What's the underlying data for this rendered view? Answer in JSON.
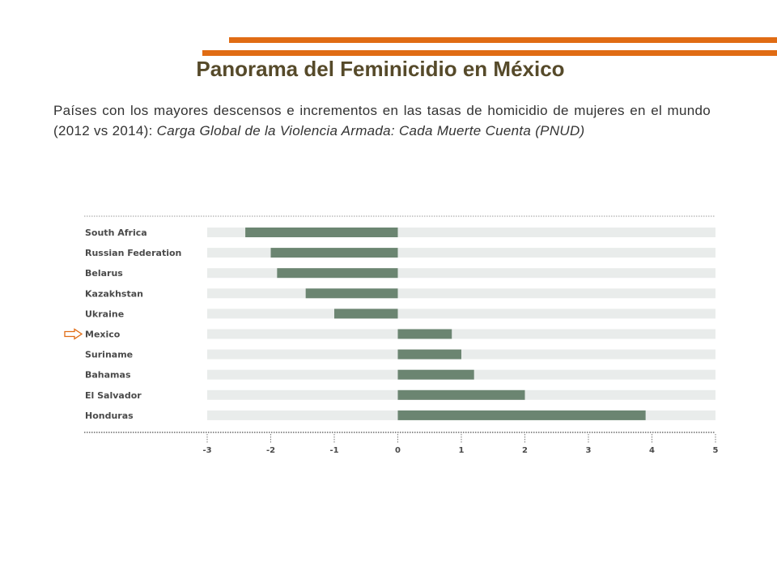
{
  "header": {
    "title": "Panorama del Feminicidio en México",
    "subtitle_plain": "Países con los mayores descensos e incrementos en las tasas de homicidio de mujeres en el mundo (2012 vs 2014): ",
    "subtitle_source": "Carga Global de la Violencia Armada: Cada Muerte Cuenta (PNUD)"
  },
  "colors": {
    "accent_line": "#e06c14",
    "title": "#564a2a",
    "bar": "#6b8571",
    "track": "#e9eceb",
    "label": "#4a4a4a"
  },
  "highlight": {
    "category": "Mexico",
    "marker": "arrow-right-icon"
  },
  "chart_data": {
    "type": "bar",
    "orientation": "horizontal",
    "categories": [
      "South Africa",
      "Russian Federation",
      "Belarus",
      "Kazakhstan",
      "Ukraine",
      "Mexico",
      "Suriname",
      "Bahamas",
      "El Salvador",
      "Honduras"
    ],
    "values": [
      -2.4,
      -2.0,
      -1.9,
      -1.45,
      -1.0,
      0.85,
      1.0,
      1.2,
      2.0,
      3.9
    ],
    "xlim": [
      -3,
      5
    ],
    "xticks": [
      "-3",
      "-2",
      "-1",
      "0",
      "1",
      "2",
      "3",
      "4",
      "5"
    ],
    "title": "",
    "xlabel": "",
    "ylabel": "",
    "grid": false,
    "legend": "none"
  }
}
